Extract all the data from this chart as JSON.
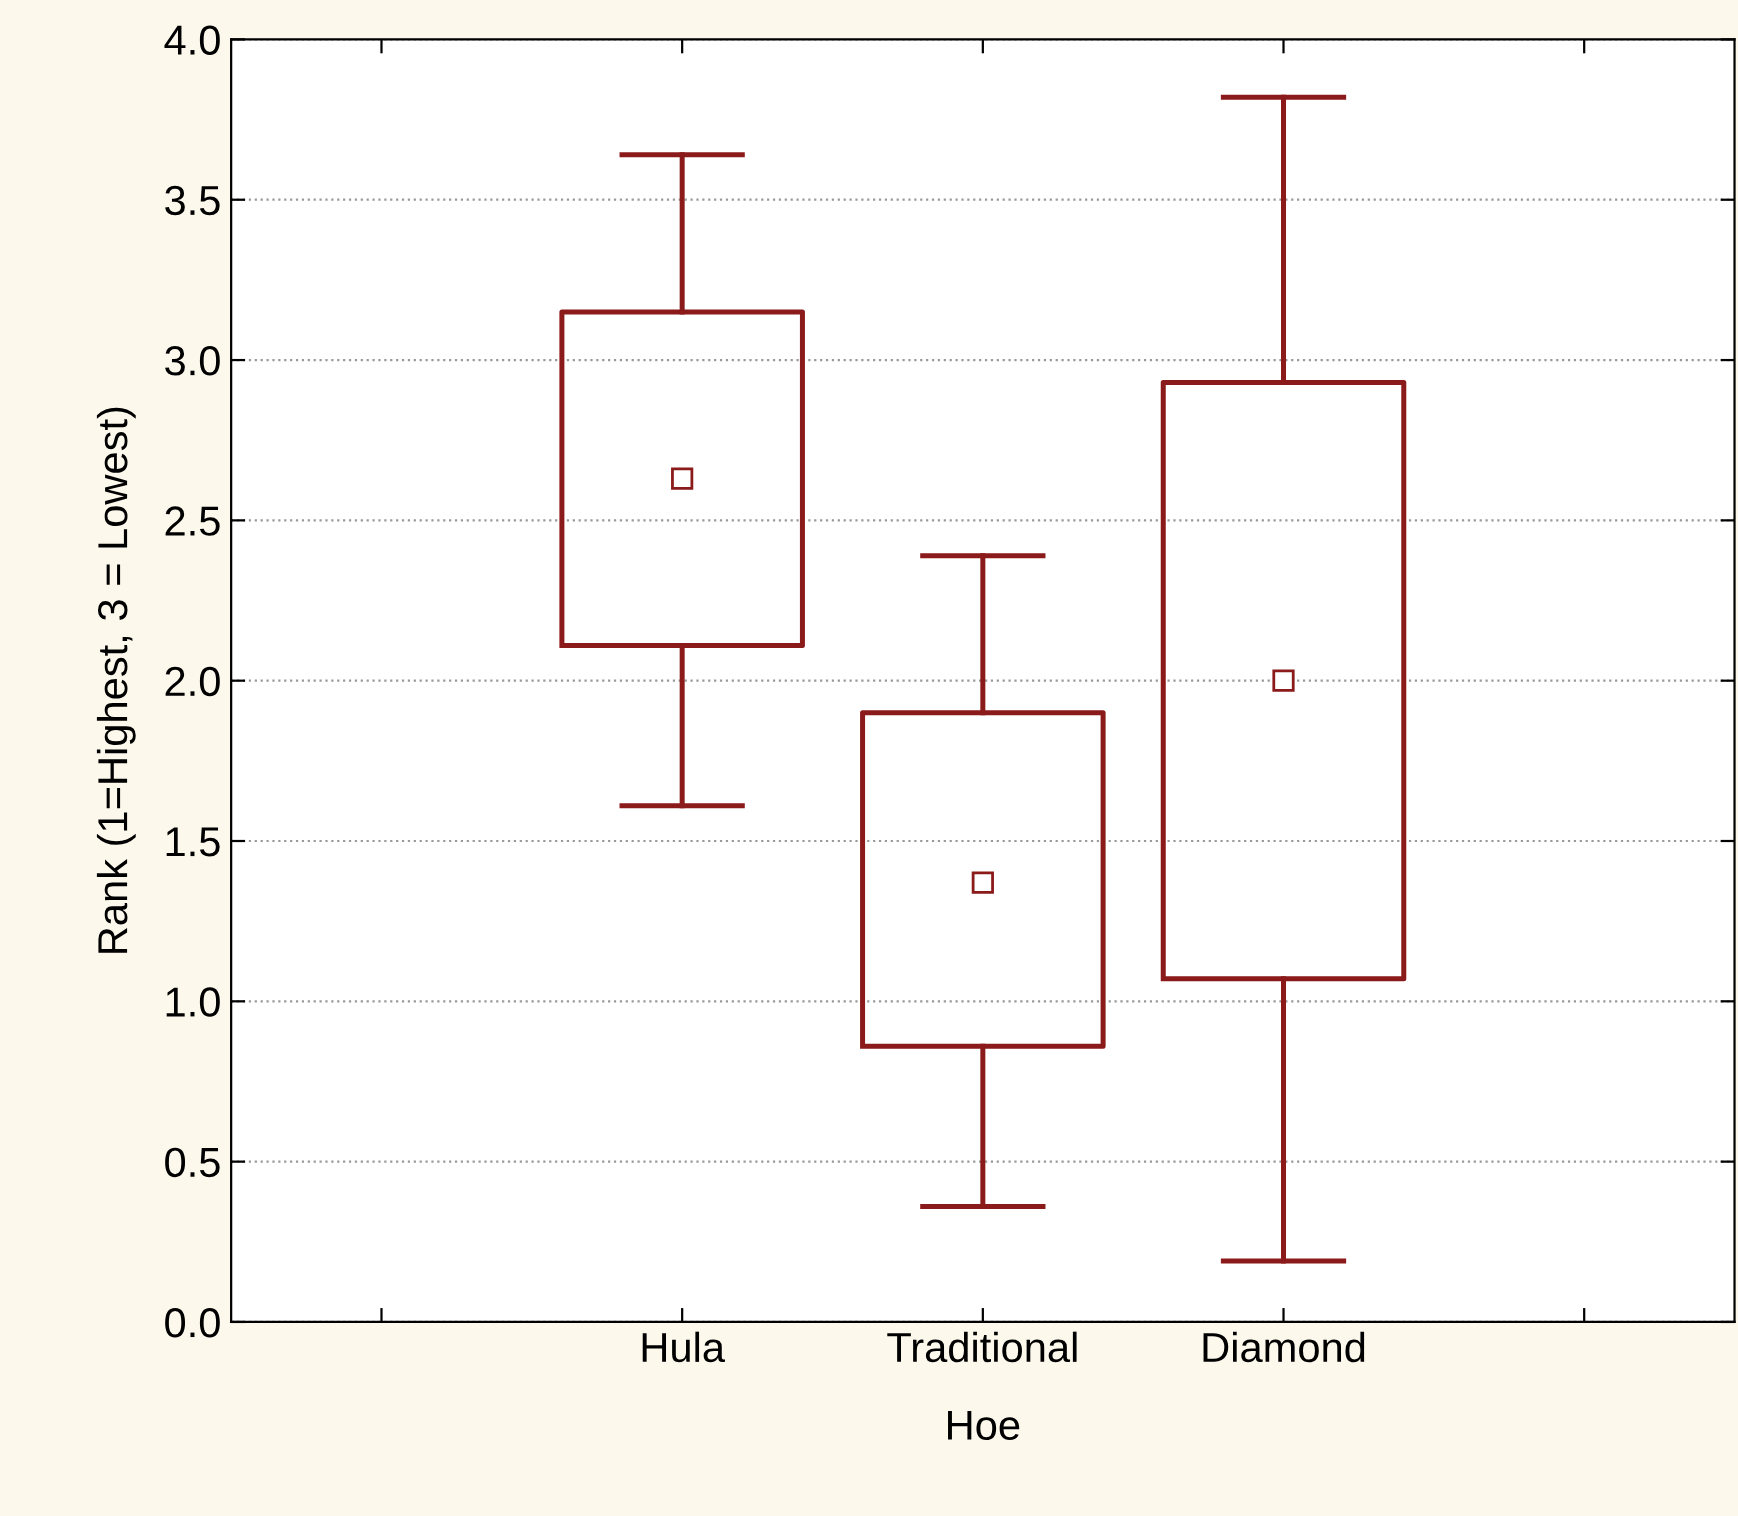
{
  "chart_data": {
    "type": "box",
    "xlabel": "Hoe",
    "ylabel": "Rank (1=Highest, 3 = Lowest)",
    "categories": [
      null,
      "Hula",
      "Traditional",
      "Diamond",
      null
    ],
    "boxes": [
      null,
      {
        "low": 1.61,
        "q1": 2.11,
        "median": 2.63,
        "q3": 3.15,
        "high": 3.64
      },
      {
        "low": 0.36,
        "q1": 0.86,
        "median": 1.37,
        "q3": 1.9,
        "high": 2.39
      },
      {
        "low": 0.19,
        "q1": 1.07,
        "median": 2.0,
        "q3": 2.93,
        "high": 3.82
      },
      null
    ],
    "color": "#8b1a1a",
    "ylim": [
      0,
      4
    ],
    "yticks": [
      {
        "value": 0,
        "label": "0.0"
      },
      {
        "value": 0.5,
        "label": "0.5"
      },
      {
        "value": 1,
        "label": "1.0"
      },
      {
        "value": 1.5,
        "label": "1.5"
      },
      {
        "value": 2,
        "label": "2.0"
      },
      {
        "value": 2.5,
        "label": "2.5"
      },
      {
        "value": 3,
        "label": "3.0"
      },
      {
        "value": 3.5,
        "label": "3.5"
      },
      {
        "value": 4,
        "label": "4.0"
      }
    ],
    "grid": "y",
    "marker": "square"
  }
}
